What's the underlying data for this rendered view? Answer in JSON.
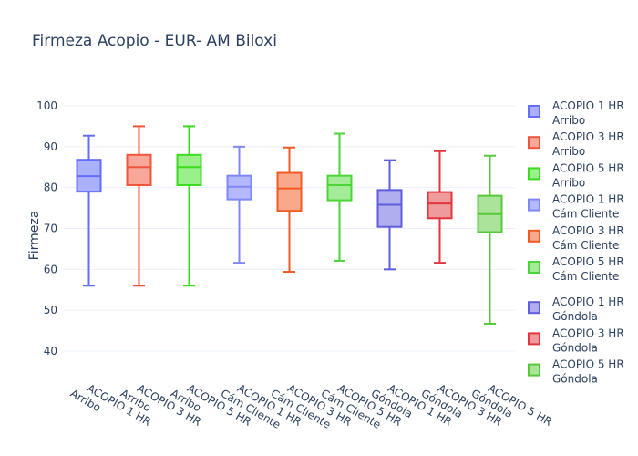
{
  "chart_data": {
    "type": "box",
    "title": "Firmeza Acopio - EUR- AM Biloxi",
    "xlabel": "",
    "ylabel": "Firmeza",
    "ylim": [
      32,
      103
    ],
    "yticks": [
      40,
      50,
      60,
      70,
      80,
      90,
      100
    ],
    "grid": true,
    "legend_placement": "right",
    "series": [
      {
        "name": "ACOPIO 1 HR",
        "sub": "Arribo",
        "line": "#636efa",
        "fill": "#aab0fb",
        "min": 56,
        "q1": 79,
        "median": 82.8,
        "q3": 86.8,
        "max": 92.7
      },
      {
        "name": "ACOPIO 3 HR",
        "sub": "Arribo",
        "line": "#ef553b",
        "fill": "#f7a899",
        "min": 56,
        "q1": 80.6,
        "median": 85,
        "q3": 88,
        "max": 95
      },
      {
        "name": "ACOPIO 5 HR",
        "sub": "Arribo",
        "line": "#3bdc1e",
        "fill": "#9af08a",
        "min": 56,
        "q1": 80.6,
        "median": 85,
        "q3": 88,
        "max": 95
      },
      {
        "name": "ACOPIO 1 HR",
        "sub": "Cám Cliente",
        "line": "#7f88f8",
        "fill": "#b4b9fb",
        "min": 61.6,
        "q1": 77.1,
        "median": 80.2,
        "q3": 82.9,
        "max": 90
      },
      {
        "name": "ACOPIO 3 HR",
        "sub": "Cám Cliente",
        "line": "#f25a24",
        "fill": "#f8a98b",
        "min": 59.4,
        "q1": 74.3,
        "median": 79.8,
        "q3": 83.6,
        "max": 89.8
      },
      {
        "name": "ACOPIO 5 HR",
        "sub": "Cám Cliente",
        "line": "#4bd638",
        "fill": "#a4ec97",
        "min": 62.1,
        "q1": 76.9,
        "median": 80.6,
        "q3": 82.9,
        "max": 93.2
      },
      {
        "name": "ACOPIO 1 HR",
        "sub": "Góndola",
        "line": "#5e5ddb",
        "fill": "#b0aeec",
        "min": 60,
        "q1": 70.4,
        "median": 75.8,
        "q3": 79.4,
        "max": 86.7
      },
      {
        "name": "ACOPIO 3 HR",
        "sub": "Góndola",
        "line": "#e2353d",
        "fill": "#f09b9b",
        "min": 61.6,
        "q1": 72.5,
        "median": 76.1,
        "q3": 78.9,
        "max": 88.9
      },
      {
        "name": "ACOPIO 5 HR",
        "sub": "Góndola",
        "line": "#57c837",
        "fill": "#ace39b",
        "min": 46.7,
        "q1": 69.1,
        "median": 73.5,
        "q3": 78,
        "max": 87.8
      }
    ]
  }
}
